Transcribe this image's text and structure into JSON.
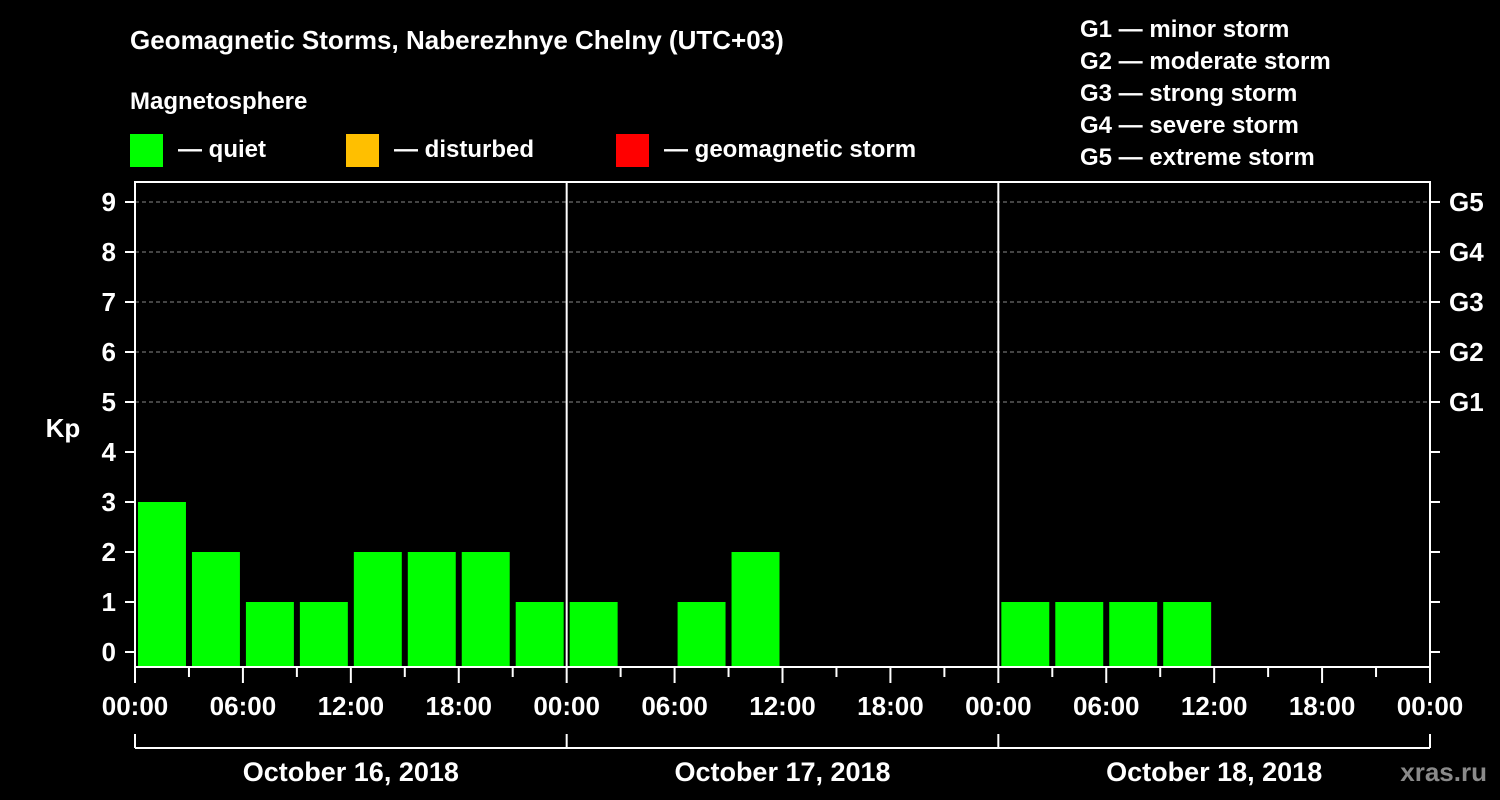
{
  "title": "Geomagnetic Storms, Naberezhnye Chelny (UTC+03)",
  "subtitle": "Magnetosphere",
  "legend": [
    {
      "label": "— quiet",
      "color": "#00ff00"
    },
    {
      "label": "— disturbed",
      "color": "#ffbf00"
    },
    {
      "label": "— geomagnetic storm",
      "color": "#ff0000"
    }
  ],
  "storm_scale": [
    "G1 — minor storm",
    "G2 — moderate storm",
    "G3 — strong storm",
    "G4 — severe storm",
    "G5 — extreme storm"
  ],
  "watermark": "xras.ru",
  "colors": {
    "quiet": "#00ff00",
    "disturbed": "#ffbf00",
    "storm": "#ff0000",
    "grid": "#888888",
    "axis": "#ffffff"
  },
  "chart_data": {
    "type": "bar",
    "ylabel": "Kp",
    "ylim": [
      0,
      9
    ],
    "yticks": [
      "0",
      "1",
      "2",
      "3",
      "4",
      "5",
      "6",
      "7",
      "8",
      "9"
    ],
    "right_axis_labels": [
      {
        "value": 5,
        "label": "G1"
      },
      {
        "value": 6,
        "label": "G2"
      },
      {
        "value": 7,
        "label": "G3"
      },
      {
        "value": 8,
        "label": "G4"
      },
      {
        "value": 9,
        "label": "G5"
      }
    ],
    "xtick_labels": [
      "00:00",
      "06:00",
      "12:00",
      "18:00",
      "00:00",
      "06:00",
      "12:00",
      "18:00",
      "00:00",
      "06:00",
      "12:00",
      "18:00",
      "00:00"
    ],
    "days": [
      "October 16, 2018",
      "October 17, 2018",
      "October 18, 2018"
    ],
    "interval_hours": 3,
    "series": [
      {
        "name": "Kp",
        "values": [
          3,
          2,
          1,
          1,
          2,
          2,
          2,
          1,
          1,
          null,
          1,
          2,
          null,
          null,
          null,
          null,
          1,
          1,
          1,
          1,
          null,
          null,
          null,
          null
        ],
        "levels": [
          "quiet",
          "quiet",
          "quiet",
          "quiet",
          "quiet",
          "quiet",
          "quiet",
          "quiet",
          "quiet",
          null,
          "quiet",
          "quiet",
          null,
          null,
          null,
          null,
          "quiet",
          "quiet",
          "quiet",
          "quiet",
          null,
          null,
          null,
          null
        ]
      }
    ]
  }
}
